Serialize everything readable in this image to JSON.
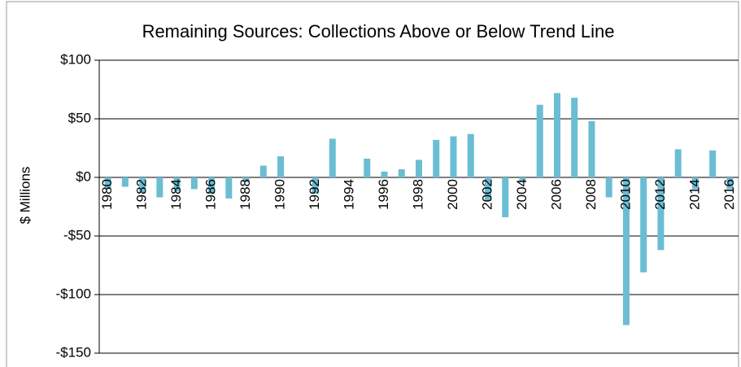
{
  "chart_data": {
    "type": "bar",
    "title": "Remaining Sources: Collections Above or Below Trend Line",
    "y_label": "$ Millions",
    "categories": [
      "1980",
      null,
      "1982",
      null,
      "1984",
      null,
      "1986",
      null,
      "1988",
      null,
      "1990",
      null,
      "1992",
      null,
      "1994",
      null,
      "1996",
      null,
      "1998",
      null,
      "2000",
      null,
      "2002",
      null,
      "2004",
      null,
      "2006",
      null,
      "2008",
      null,
      "2010",
      null,
      "2012",
      null,
      "2014",
      null,
      "2016"
    ],
    "values": [
      -10,
      -8,
      -13,
      -17,
      -12,
      -10,
      -14,
      -18,
      -4,
      10,
      18,
      0,
      -14,
      33,
      0,
      16,
      5,
      7,
      15,
      32,
      35,
      37,
      -20,
      -34,
      -4,
      62,
      72,
      68,
      48,
      -17,
      -126,
      -81,
      -62,
      24,
      -10,
      23,
      -10
    ],
    "color": "#6bbdd3",
    "ylim": [
      -150,
      100
    ],
    "yticks": [
      {
        "value": -150,
        "label": "-$150"
      },
      {
        "value": -100,
        "label": "-$100"
      },
      {
        "value": -50,
        "label": "-$50"
      },
      {
        "value": 0,
        "label": "$0"
      },
      {
        "value": 50,
        "label": "$50"
      },
      {
        "value": 100,
        "label": "$100"
      }
    ],
    "grid": true
  }
}
